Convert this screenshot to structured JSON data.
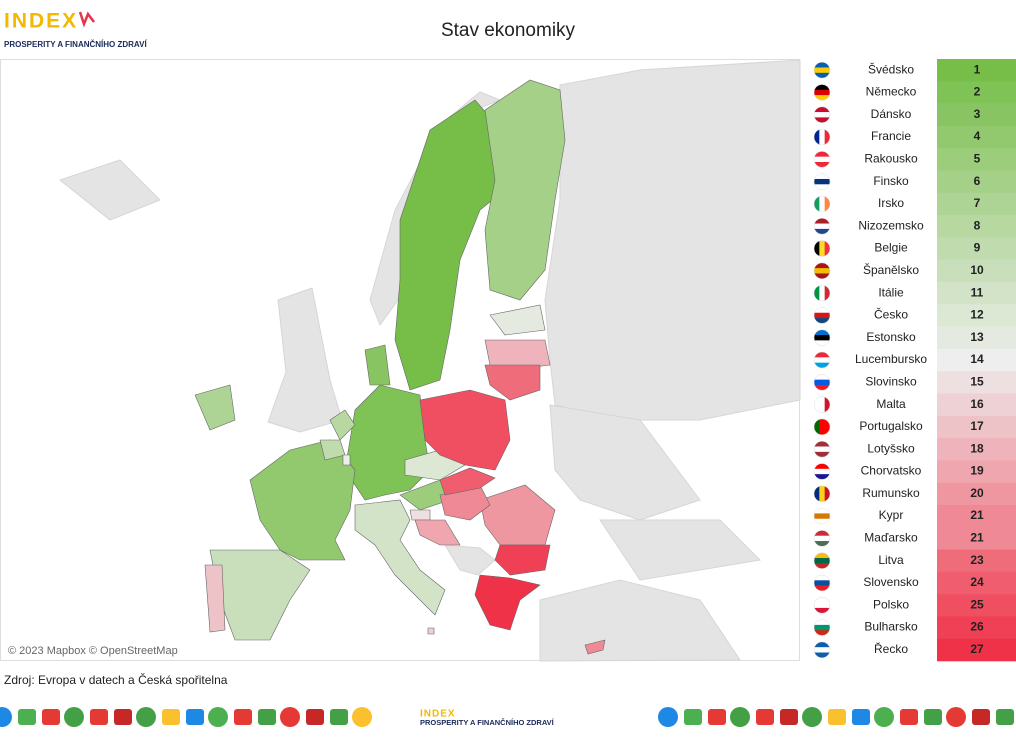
{
  "header": {
    "logo_title": "INDEX",
    "logo_subtitle": "PROSPERITY A FINANČNÍHO ZDRAVÍ",
    "title": "Stav ekonomiky"
  },
  "map": {
    "attribution": "© 2023 Mapbox © OpenStreetMap"
  },
  "ranking": {
    "rows": [
      {
        "country": "Švédsko",
        "rank": 1
      },
      {
        "country": "Německo",
        "rank": 2
      },
      {
        "country": "Dánsko",
        "rank": 3
      },
      {
        "country": "Francie",
        "rank": 4
      },
      {
        "country": "Rakousko",
        "rank": 5
      },
      {
        "country": "Finsko",
        "rank": 6
      },
      {
        "country": "Irsko",
        "rank": 7
      },
      {
        "country": "Nizozemsko",
        "rank": 8
      },
      {
        "country": "Belgie",
        "rank": 9
      },
      {
        "country": "Španělsko",
        "rank": 10
      },
      {
        "country": "Itálie",
        "rank": 11
      },
      {
        "country": "Česko",
        "rank": 12
      },
      {
        "country": "Estonsko",
        "rank": 13
      },
      {
        "country": "Lucembursko",
        "rank": 14
      },
      {
        "country": "Slovinsko",
        "rank": 15
      },
      {
        "country": "Malta",
        "rank": 16
      },
      {
        "country": "Portugalsko",
        "rank": 17
      },
      {
        "country": "Lotyšsko",
        "rank": 18
      },
      {
        "country": "Chorvatsko",
        "rank": 19
      },
      {
        "country": "Rumunsko",
        "rank": 20
      },
      {
        "country": "Kypr",
        "rank": 21
      },
      {
        "country": "Maďarsko",
        "rank": 21
      },
      {
        "country": "Litva",
        "rank": 23
      },
      {
        "country": "Slovensko",
        "rank": 24
      },
      {
        "country": "Polsko",
        "rank": 25
      },
      {
        "country": "Bulharsko",
        "rank": 26
      },
      {
        "country": "Řecko",
        "rank": 27
      }
    ]
  },
  "source": "Zdroj: Evropa v datech a Česká spořitelna",
  "footer": {
    "logo_title": "INDEX",
    "logo_subtitle": "PROSPERITY A FINANČNÍHO ZDRAVÍ"
  }
}
